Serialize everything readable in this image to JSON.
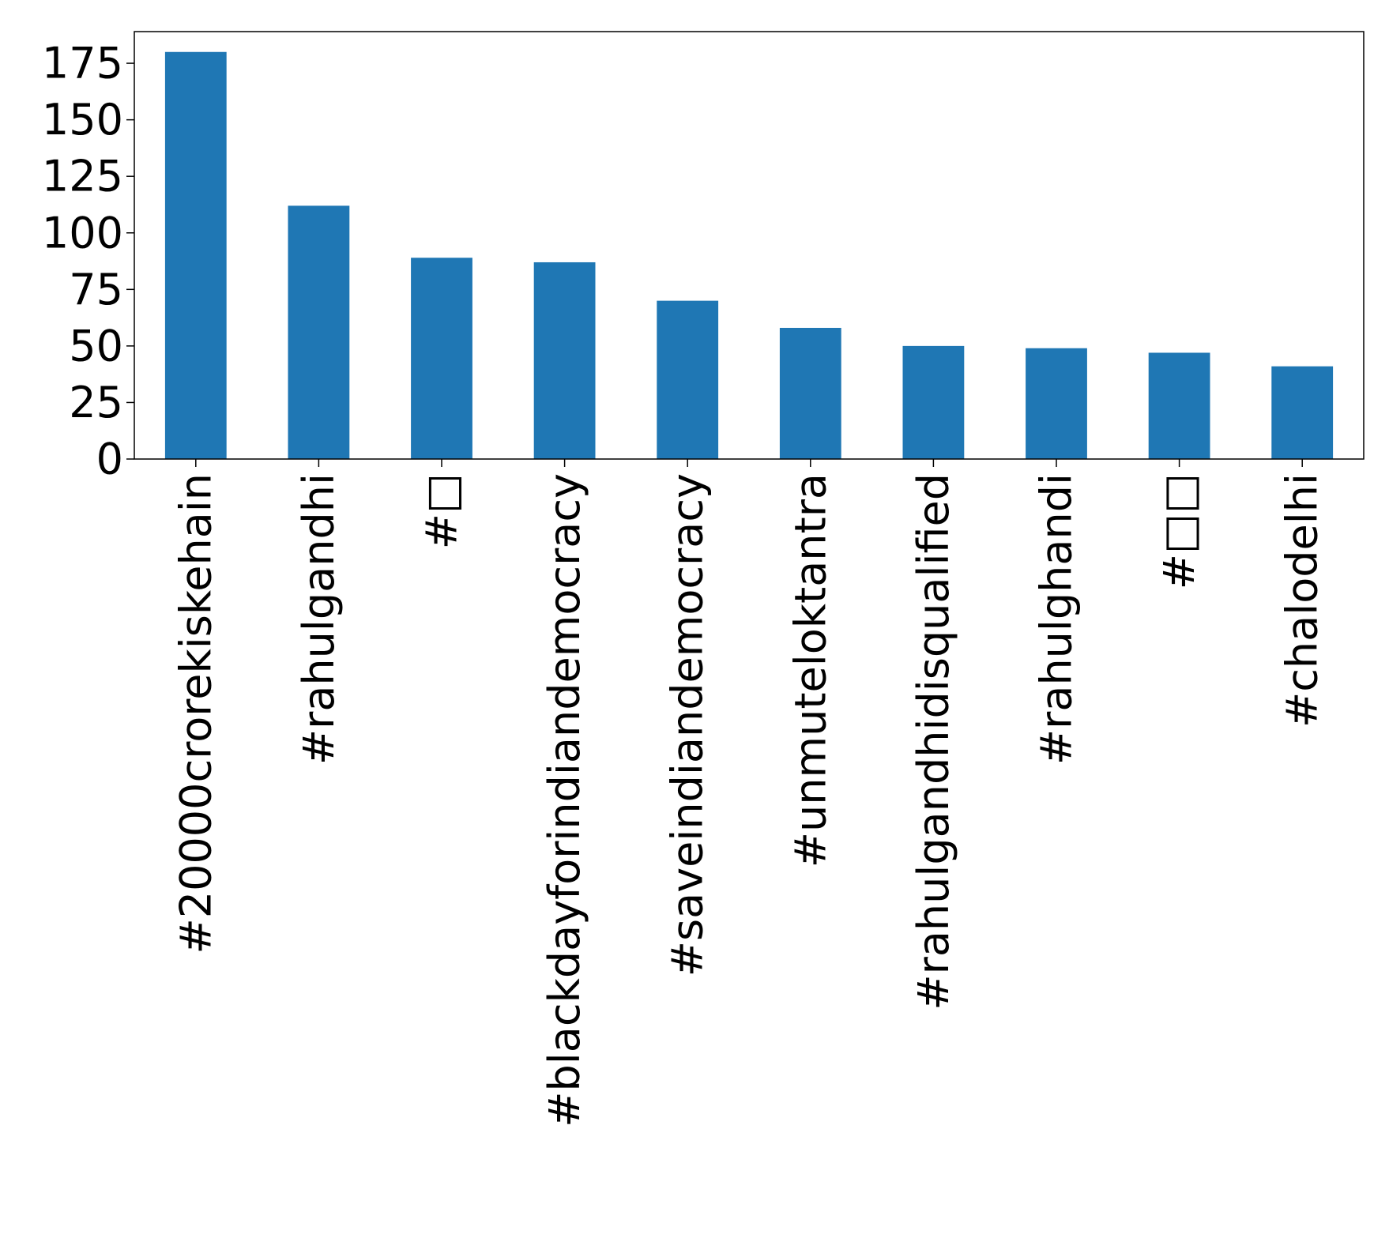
{
  "chart_data": {
    "type": "bar",
    "title": "",
    "xlabel": "",
    "ylabel": "",
    "categories": [
      "#20000crorekiskehain",
      "#rahulgandhi",
      "#□",
      "#blackdayforindiandemocracy",
      "#saveindiandemocracy",
      "#unmuteloktantra",
      "#rahulgandhidisqualified",
      "#rahulghandi",
      "#□□",
      "#chalodelhi"
    ],
    "values": [
      180,
      112,
      89,
      87,
      70,
      58,
      50,
      49,
      47,
      41
    ],
    "ylim": [
      0,
      189
    ],
    "yticks": [
      "0",
      "25",
      "50",
      "75",
      "100",
      "125",
      "150",
      "175"
    ],
    "grid": false,
    "legend": "none",
    "bar_color": "#1f77b4"
  }
}
